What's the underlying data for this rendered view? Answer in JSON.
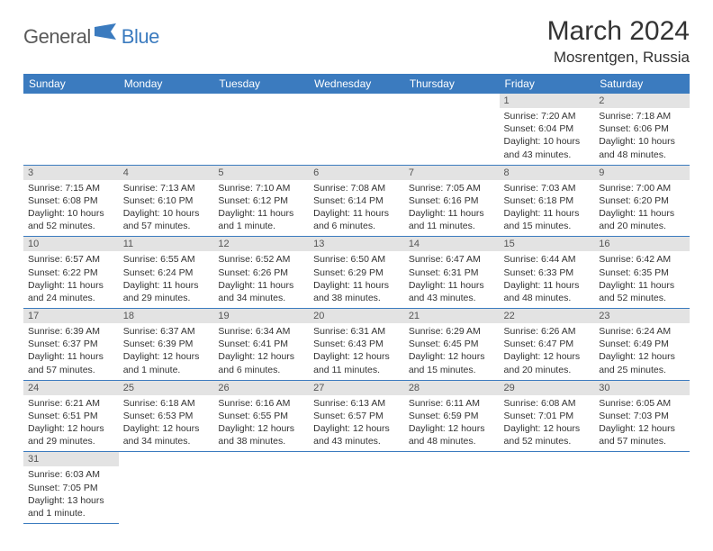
{
  "logo": {
    "part1": "General",
    "part2": "Blue"
  },
  "title": "March 2024",
  "location": "Mosrentgen, Russia",
  "colors": {
    "header_bg": "#3b7bbf",
    "header_text": "#ffffff",
    "daynum_bg": "#e3e3e3",
    "daynum_text": "#555555",
    "cell_border": "#3b7bbf",
    "body_text": "#333333",
    "logo_gray": "#5a5a5a",
    "logo_blue": "#3b7bbf"
  },
  "daysOfWeek": [
    "Sunday",
    "Monday",
    "Tuesday",
    "Wednesday",
    "Thursday",
    "Friday",
    "Saturday"
  ],
  "weeks": [
    [
      null,
      null,
      null,
      null,
      null,
      {
        "n": "1",
        "sunrise": "Sunrise: 7:20 AM",
        "sunset": "Sunset: 6:04 PM",
        "daylight": "Daylight: 10 hours and 43 minutes."
      },
      {
        "n": "2",
        "sunrise": "Sunrise: 7:18 AM",
        "sunset": "Sunset: 6:06 PM",
        "daylight": "Daylight: 10 hours and 48 minutes."
      }
    ],
    [
      {
        "n": "3",
        "sunrise": "Sunrise: 7:15 AM",
        "sunset": "Sunset: 6:08 PM",
        "daylight": "Daylight: 10 hours and 52 minutes."
      },
      {
        "n": "4",
        "sunrise": "Sunrise: 7:13 AM",
        "sunset": "Sunset: 6:10 PM",
        "daylight": "Daylight: 10 hours and 57 minutes."
      },
      {
        "n": "5",
        "sunrise": "Sunrise: 7:10 AM",
        "sunset": "Sunset: 6:12 PM",
        "daylight": "Daylight: 11 hours and 1 minute."
      },
      {
        "n": "6",
        "sunrise": "Sunrise: 7:08 AM",
        "sunset": "Sunset: 6:14 PM",
        "daylight": "Daylight: 11 hours and 6 minutes."
      },
      {
        "n": "7",
        "sunrise": "Sunrise: 7:05 AM",
        "sunset": "Sunset: 6:16 PM",
        "daylight": "Daylight: 11 hours and 11 minutes."
      },
      {
        "n": "8",
        "sunrise": "Sunrise: 7:03 AM",
        "sunset": "Sunset: 6:18 PM",
        "daylight": "Daylight: 11 hours and 15 minutes."
      },
      {
        "n": "9",
        "sunrise": "Sunrise: 7:00 AM",
        "sunset": "Sunset: 6:20 PM",
        "daylight": "Daylight: 11 hours and 20 minutes."
      }
    ],
    [
      {
        "n": "10",
        "sunrise": "Sunrise: 6:57 AM",
        "sunset": "Sunset: 6:22 PM",
        "daylight": "Daylight: 11 hours and 24 minutes."
      },
      {
        "n": "11",
        "sunrise": "Sunrise: 6:55 AM",
        "sunset": "Sunset: 6:24 PM",
        "daylight": "Daylight: 11 hours and 29 minutes."
      },
      {
        "n": "12",
        "sunrise": "Sunrise: 6:52 AM",
        "sunset": "Sunset: 6:26 PM",
        "daylight": "Daylight: 11 hours and 34 minutes."
      },
      {
        "n": "13",
        "sunrise": "Sunrise: 6:50 AM",
        "sunset": "Sunset: 6:29 PM",
        "daylight": "Daylight: 11 hours and 38 minutes."
      },
      {
        "n": "14",
        "sunrise": "Sunrise: 6:47 AM",
        "sunset": "Sunset: 6:31 PM",
        "daylight": "Daylight: 11 hours and 43 minutes."
      },
      {
        "n": "15",
        "sunrise": "Sunrise: 6:44 AM",
        "sunset": "Sunset: 6:33 PM",
        "daylight": "Daylight: 11 hours and 48 minutes."
      },
      {
        "n": "16",
        "sunrise": "Sunrise: 6:42 AM",
        "sunset": "Sunset: 6:35 PM",
        "daylight": "Daylight: 11 hours and 52 minutes."
      }
    ],
    [
      {
        "n": "17",
        "sunrise": "Sunrise: 6:39 AM",
        "sunset": "Sunset: 6:37 PM",
        "daylight": "Daylight: 11 hours and 57 minutes."
      },
      {
        "n": "18",
        "sunrise": "Sunrise: 6:37 AM",
        "sunset": "Sunset: 6:39 PM",
        "daylight": "Daylight: 12 hours and 1 minute."
      },
      {
        "n": "19",
        "sunrise": "Sunrise: 6:34 AM",
        "sunset": "Sunset: 6:41 PM",
        "daylight": "Daylight: 12 hours and 6 minutes."
      },
      {
        "n": "20",
        "sunrise": "Sunrise: 6:31 AM",
        "sunset": "Sunset: 6:43 PM",
        "daylight": "Daylight: 12 hours and 11 minutes."
      },
      {
        "n": "21",
        "sunrise": "Sunrise: 6:29 AM",
        "sunset": "Sunset: 6:45 PM",
        "daylight": "Daylight: 12 hours and 15 minutes."
      },
      {
        "n": "22",
        "sunrise": "Sunrise: 6:26 AM",
        "sunset": "Sunset: 6:47 PM",
        "daylight": "Daylight: 12 hours and 20 minutes."
      },
      {
        "n": "23",
        "sunrise": "Sunrise: 6:24 AM",
        "sunset": "Sunset: 6:49 PM",
        "daylight": "Daylight: 12 hours and 25 minutes."
      }
    ],
    [
      {
        "n": "24",
        "sunrise": "Sunrise: 6:21 AM",
        "sunset": "Sunset: 6:51 PM",
        "daylight": "Daylight: 12 hours and 29 minutes."
      },
      {
        "n": "25",
        "sunrise": "Sunrise: 6:18 AM",
        "sunset": "Sunset: 6:53 PM",
        "daylight": "Daylight: 12 hours and 34 minutes."
      },
      {
        "n": "26",
        "sunrise": "Sunrise: 6:16 AM",
        "sunset": "Sunset: 6:55 PM",
        "daylight": "Daylight: 12 hours and 38 minutes."
      },
      {
        "n": "27",
        "sunrise": "Sunrise: 6:13 AM",
        "sunset": "Sunset: 6:57 PM",
        "daylight": "Daylight: 12 hours and 43 minutes."
      },
      {
        "n": "28",
        "sunrise": "Sunrise: 6:11 AM",
        "sunset": "Sunset: 6:59 PM",
        "daylight": "Daylight: 12 hours and 48 minutes."
      },
      {
        "n": "29",
        "sunrise": "Sunrise: 6:08 AM",
        "sunset": "Sunset: 7:01 PM",
        "daylight": "Daylight: 12 hours and 52 minutes."
      },
      {
        "n": "30",
        "sunrise": "Sunrise: 6:05 AM",
        "sunset": "Sunset: 7:03 PM",
        "daylight": "Daylight: 12 hours and 57 minutes."
      }
    ],
    [
      {
        "n": "31",
        "sunrise": "Sunrise: 6:03 AM",
        "sunset": "Sunset: 7:05 PM",
        "daylight": "Daylight: 13 hours and 1 minute."
      },
      null,
      null,
      null,
      null,
      null,
      null
    ]
  ]
}
